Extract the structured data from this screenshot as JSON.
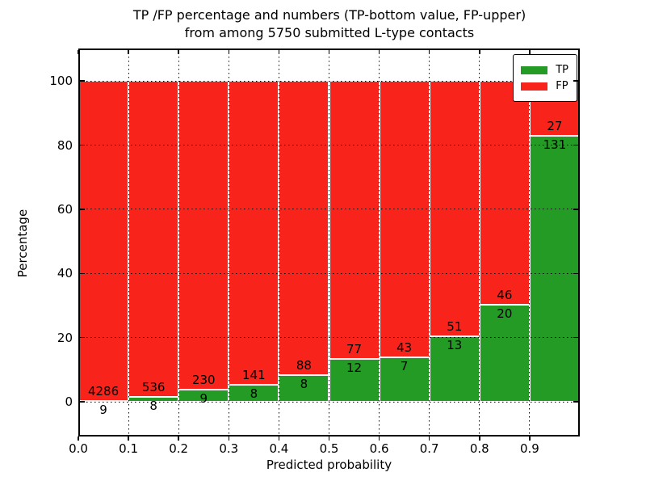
{
  "title_line1": "TP /FP percentage and numbers (TP-bottom value, FP-upper)",
  "title_line2": "from among 5750 submitted L-type contacts",
  "axes": {
    "xlabel": "Predicted probability",
    "ylabel": "Percentage"
  },
  "legend": {
    "items": [
      {
        "label": "TP",
        "color": "#249b24"
      },
      {
        "label": "FP",
        "color": "#f8241b"
      }
    ]
  },
  "chart_data": {
    "type": "bar",
    "stacked": true,
    "normalized_to_percent": 100,
    "title": "TP /FP percentage and numbers (TP-bottom value, FP-upper)\nfrom among 5750 submitted L-type contacts",
    "xlabel": "Predicted probability",
    "ylabel": "Percentage",
    "xlim": [
      0.0,
      1.0
    ],
    "ylim": [
      -10.8,
      110.1
    ],
    "bin_starts": [
      0.0,
      0.1,
      0.2,
      0.3,
      0.4,
      0.5,
      0.6,
      0.7,
      0.8,
      0.9
    ],
    "bin_width": 0.1,
    "xtick_values": [
      0.0,
      0.1,
      0.2,
      0.3,
      0.4,
      0.5,
      0.6,
      0.7,
      0.8,
      0.9
    ],
    "xtick_labels": [
      "0.0",
      "0.1",
      "0.2",
      "0.3",
      "0.4",
      "0.5",
      "0.6",
      "0.7",
      "0.8",
      "0.9"
    ],
    "ytick_values": [
      0,
      20,
      40,
      60,
      80,
      100
    ],
    "ytick_labels": [
      "0",
      "20",
      "40",
      "60",
      "80",
      "100"
    ],
    "grid": "dotted",
    "legend_position": "upper right",
    "total_contacts": 5750,
    "series": [
      {
        "name": "TP",
        "color": "#249b24",
        "counts": [
          9,
          8,
          9,
          8,
          8,
          12,
          7,
          13,
          20,
          131
        ]
      },
      {
        "name": "FP",
        "color": "#f8241b",
        "counts": [
          4286,
          536,
          230,
          141,
          88,
          77,
          43,
          51,
          46,
          27
        ]
      }
    ],
    "tp_percent": [
      0.21,
      1.47,
      3.77,
      5.37,
      8.33,
      13.48,
      14.0,
      20.31,
      30.3,
      82.91
    ]
  }
}
